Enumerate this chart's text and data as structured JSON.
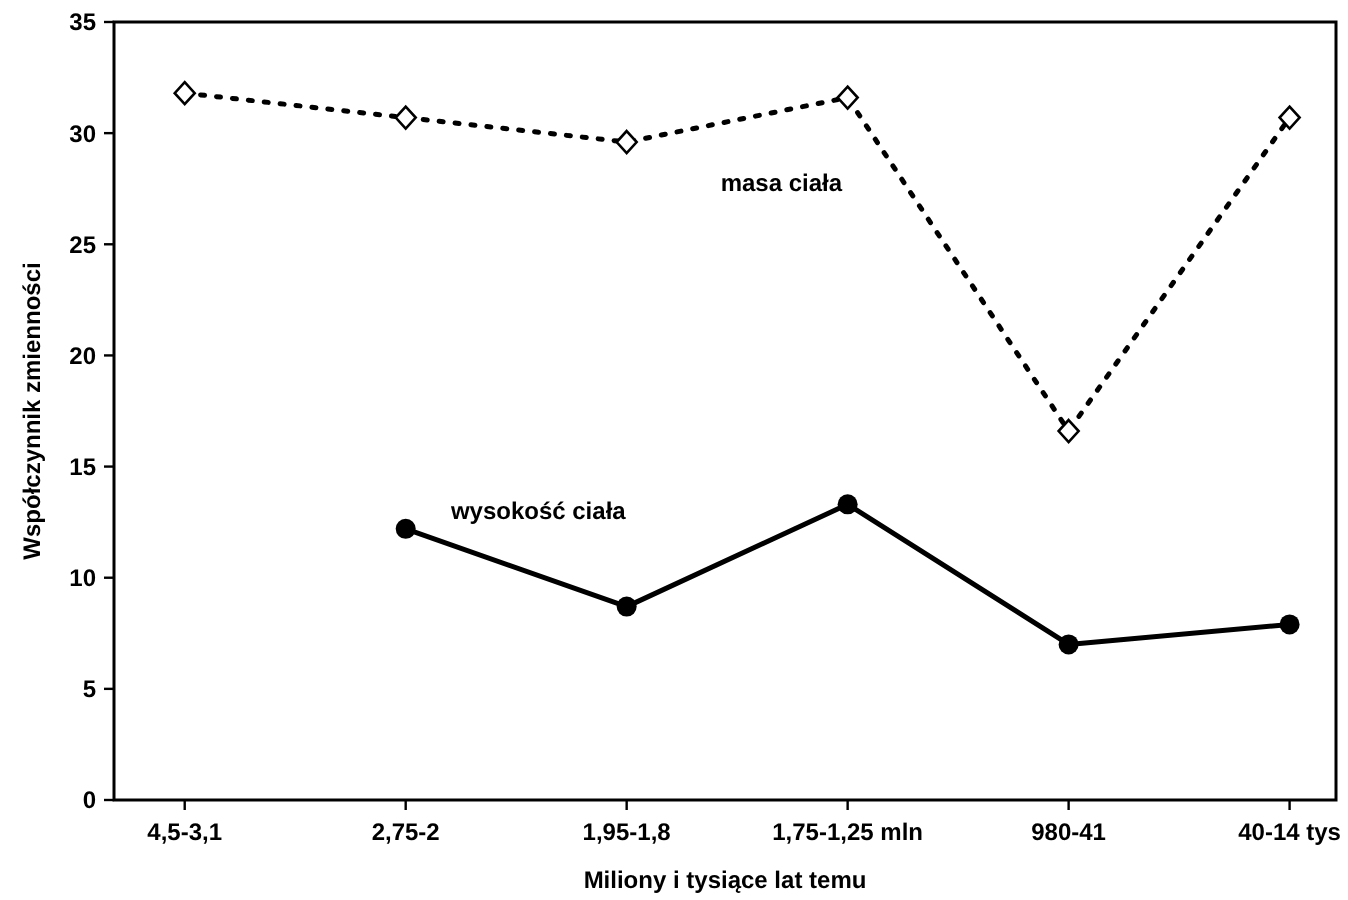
{
  "chart_data": {
    "type": "line",
    "xlabel": "Miliony i tysiące lat temu",
    "ylabel": "Współczynnik zmienności",
    "categories": [
      "4,5-3,1",
      "2,75-2",
      "1,95-1,8",
      "1,75-1,25 mln",
      "980-41",
      "40-14 tys"
    ],
    "ylim": [
      0,
      35
    ],
    "yticks": [
      0,
      5,
      10,
      15,
      20,
      25,
      30,
      35
    ],
    "grid": false,
    "legend": false,
    "series": [
      {
        "name": "masa ciała",
        "color": "#000000",
        "marker": "diamond",
        "line_style": "dotted",
        "values": [
          31.8,
          30.7,
          29.6,
          31.6,
          16.6,
          30.7
        ]
      },
      {
        "name": "wysokość ciała",
        "color": "#000000",
        "marker": "circle",
        "line_style": "solid",
        "values": [
          null,
          12.2,
          8.7,
          13.3,
          7.0,
          7.9
        ]
      }
    ]
  }
}
